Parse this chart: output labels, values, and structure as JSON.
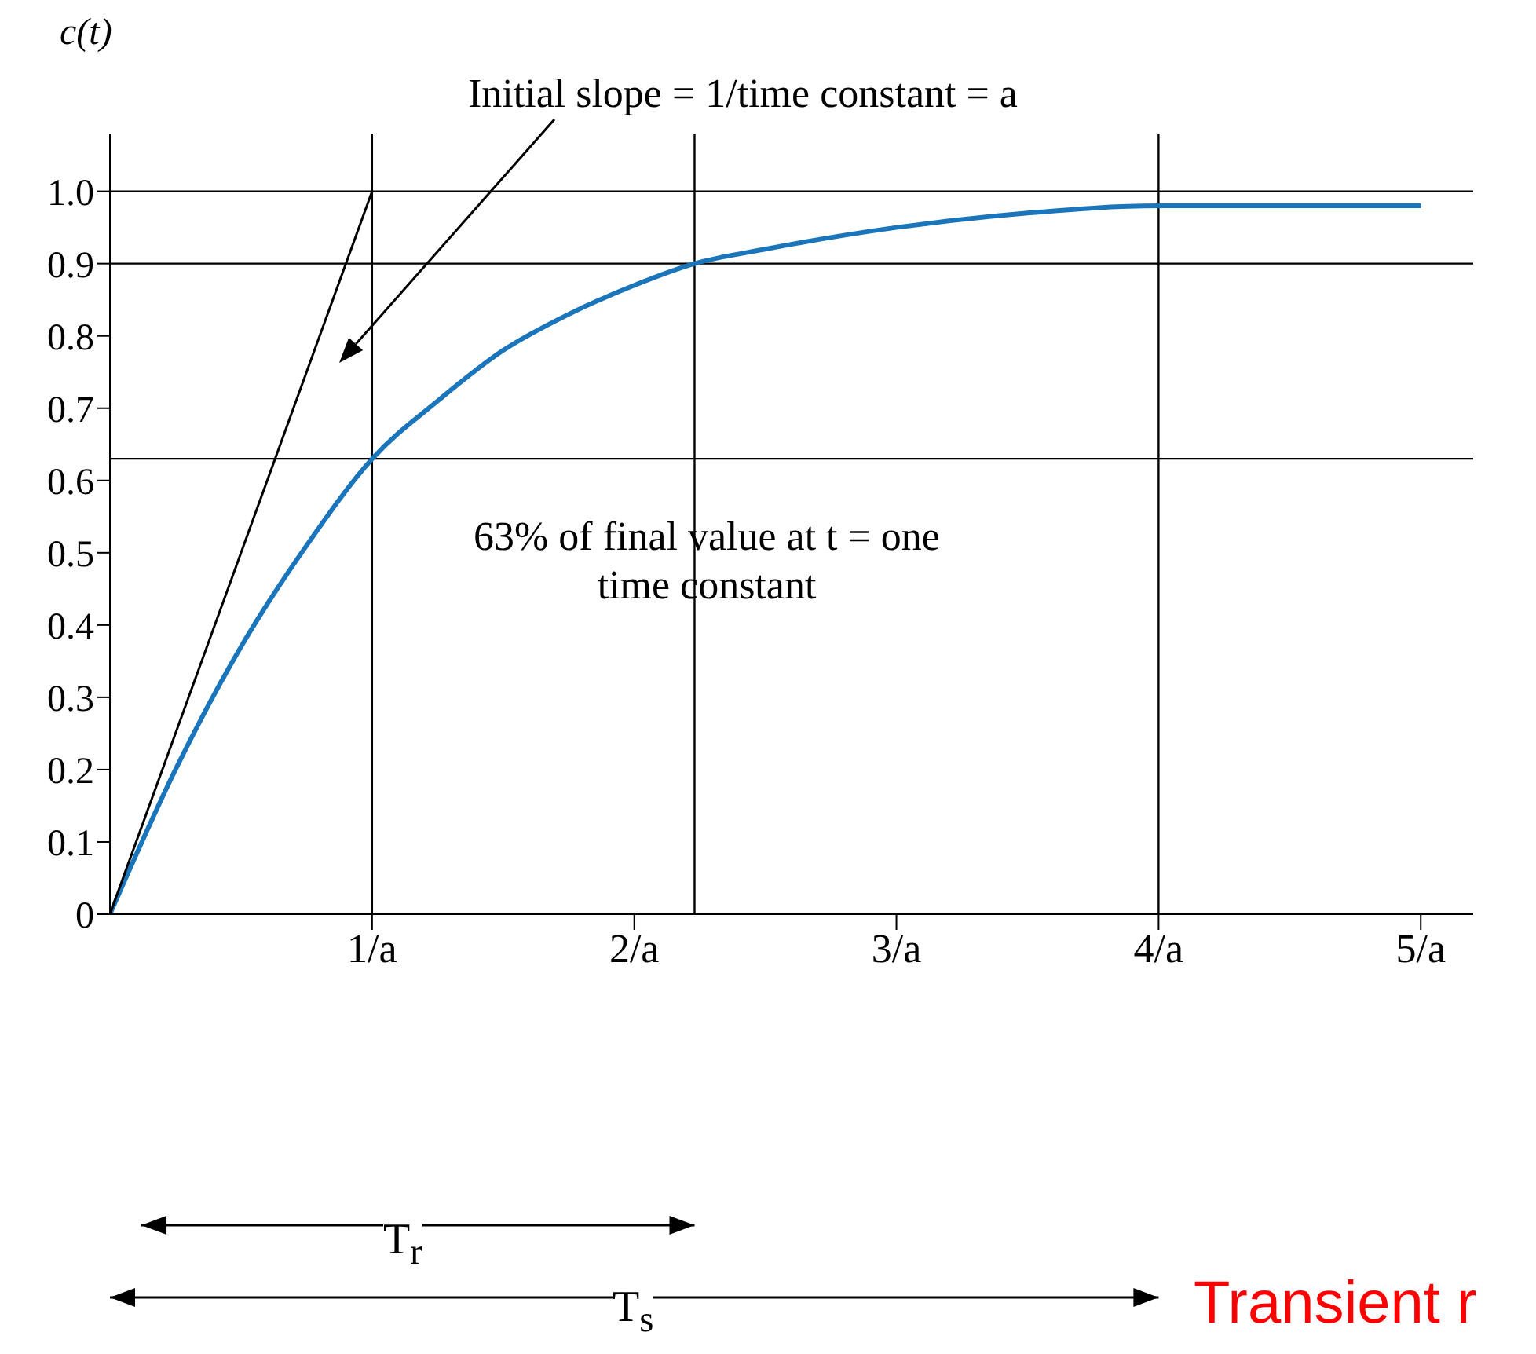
{
  "chart_data": {
    "type": "line",
    "ylabel": "c(t)",
    "xlim": [
      0,
      5.2
    ],
    "ylim": [
      0,
      1.08
    ],
    "xticks": [
      {
        "value": 1,
        "label": "1/a"
      },
      {
        "value": 2,
        "label": "2/a"
      },
      {
        "value": 3,
        "label": "3/a"
      },
      {
        "value": 4,
        "label": "4/a"
      },
      {
        "value": 5,
        "label": "5/a"
      }
    ],
    "yticks": [
      {
        "value": 0,
        "label": "0"
      },
      0.1,
      0.2,
      0.3,
      0.4,
      0.5,
      0.6,
      0.7,
      0.8,
      0.9,
      {
        "value": 1,
        "label": "1.0"
      }
    ],
    "series": [
      {
        "color": "#1a75bb",
        "x": [
          0,
          0.25,
          0.5,
          0.75,
          1,
          1.25,
          1.5,
          1.75,
          2,
          2.23,
          2.5,
          3,
          3.5,
          4,
          4.5,
          5
        ],
        "values": [
          0,
          0.2,
          0.37,
          0.51,
          0.63,
          0.71,
          0.78,
          0.83,
          0.87,
          0.9,
          0.92,
          0.95,
          0.97,
          0.98,
          0.98,
          0.98
        ]
      },
      {
        "color": "#000000",
        "x": [
          0,
          1
        ],
        "values": [
          0,
          1
        ]
      }
    ],
    "ref_lines": [
      {
        "axis": "y",
        "value": 1,
        "color": "#000000"
      },
      {
        "axis": "y",
        "value": 0.9,
        "color": "#000000"
      },
      {
        "axis": "y",
        "value": 0.63,
        "color": "#000000"
      },
      {
        "axis": "x",
        "value": 1,
        "color": "#000000"
      },
      {
        "axis": "x",
        "value": 2.23,
        "color": "#000000"
      },
      {
        "axis": "x",
        "value": 4,
        "color": "#000000"
      }
    ],
    "annotations": [
      "Initial slope = 1/time constant = a",
      "63% of final value at t = one time constant",
      "T$_{r}$",
      "T$_{s}$",
      "Transient r"
    ],
    "marker": "none",
    "line_style": "solid",
    "grid": false,
    "legend": false
  }
}
